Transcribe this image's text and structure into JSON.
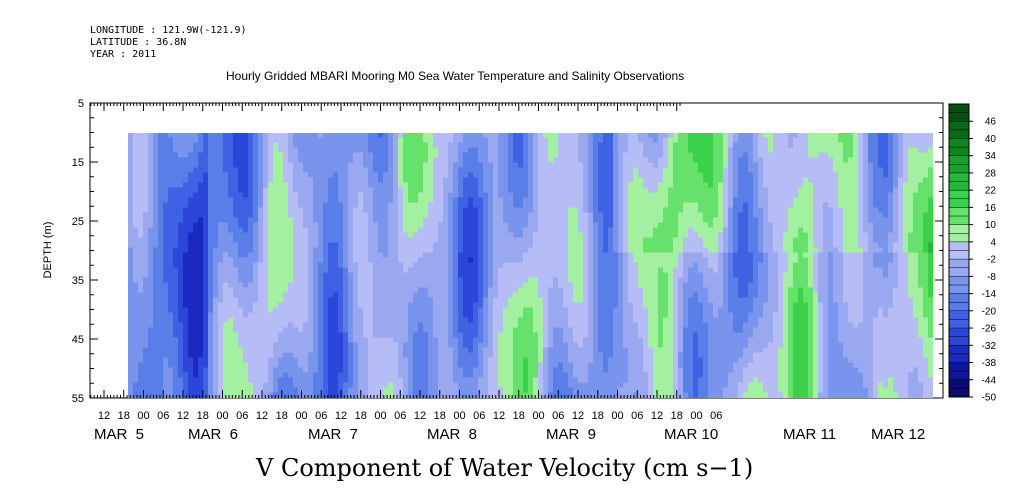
{
  "header": {
    "longitude": "LONGITUDE : 121.9W(-121.9)",
    "latitude": "LATITUDE : 36.8N",
    "year": "YEAR : 2011",
    "title": "Hourly Gridded MBARI Mooring M0 Sea Water Temperature and Salinity Observations"
  },
  "chart_data": {
    "type": "heatmap",
    "title": "Hourly Gridded MBARI Mooring M0 Sea Water Temperature and Salinity Observations",
    "xlabel": "V Component of Water Velocity (cm s−1)",
    "ylabel": "DEPTH (m)",
    "y_ticks": [
      5,
      15,
      25,
      35,
      45,
      55
    ],
    "ylim": [
      5,
      55
    ],
    "y_inverted": true,
    "data_depth_range": [
      10,
      55
    ],
    "hour_tick_labels": [
      "12",
      "18",
      "00",
      "06",
      "12",
      "18",
      "00",
      "06",
      "12",
      "18",
      "00",
      "06",
      "12",
      "18",
      "00",
      "06",
      "12",
      "18",
      "00",
      "06",
      "12",
      "18",
      "00",
      "06",
      "12",
      "18",
      "00",
      "06",
      "12",
      "18",
      "00",
      "06"
    ],
    "day_labels": [
      "MAR  5",
      "MAR  6",
      "MAR  7",
      "MAR  8",
      "MAR  9",
      "MAR 10",
      "MAR 11",
      "MAR 12"
    ],
    "colorbar_levels": [
      46,
      40,
      34,
      28,
      22,
      16,
      10,
      4,
      -2,
      -8,
      -14,
      -20,
      -26,
      -32,
      -38,
      -44,
      -50
    ],
    "colorbar_range": [
      -50,
      52
    ],
    "colormap_notes": "blue for negative, green for positive, pale near zero"
  }
}
